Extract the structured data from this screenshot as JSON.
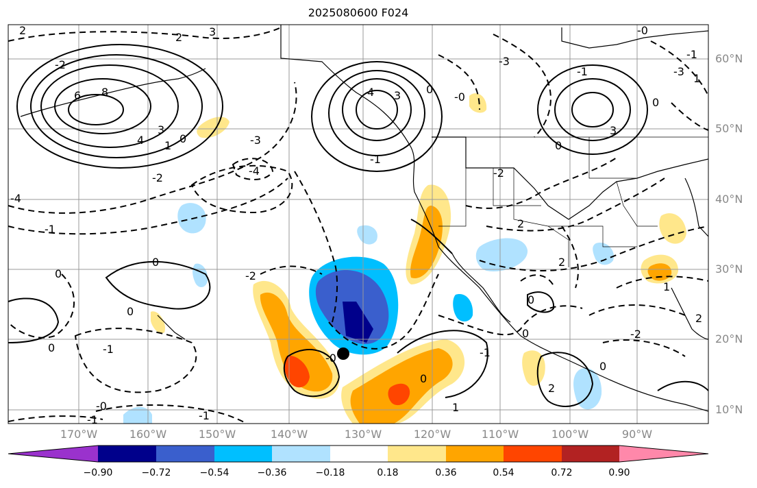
{
  "title": "2025080600 F024",
  "lon_ticks": [
    "170°W",
    "160°W",
    "150°W",
    "140°W",
    "130°W",
    "120°W",
    "110°W",
    "100°W",
    "90°W"
  ],
  "lat_ticks": [
    "60°N",
    "50°N",
    "40°N",
    "30°N",
    "20°N",
    "10°N"
  ],
  "colorbar": {
    "ticks": [
      "−0.90",
      "−0.72",
      "−0.54",
      "−0.36",
      "−0.18",
      "0.18",
      "0.36",
      "0.54",
      "0.72",
      "0.90"
    ],
    "colors": [
      "#9a32cd",
      "#00008b",
      "#3a5fcd",
      "#00bfff",
      "#b0e2ff",
      "#ffffff",
      "#ffe78b",
      "#ffa500",
      "#ff4500",
      "#b22222",
      "#ff88aa"
    ]
  },
  "contour_labels": [
    "2",
    "3",
    "2",
    "-2",
    "6",
    "8",
    "4",
    "3",
    "1",
    "0",
    "-3",
    "-4",
    "-2",
    "-1",
    "0",
    "0",
    "-1",
    "0",
    "-2",
    "0",
    "-1",
    "-0",
    "-1",
    "-0",
    "4",
    "3",
    "0",
    "-1",
    "-0",
    "1",
    "2",
    "3",
    "0",
    "-3",
    "0",
    "-2",
    "2",
    "2",
    "-2",
    "0",
    "-1",
    "0",
    "0",
    "0",
    "1",
    "2",
    "-1",
    "-0",
    "-1",
    "1",
    "-3",
    "-4"
  ]
}
